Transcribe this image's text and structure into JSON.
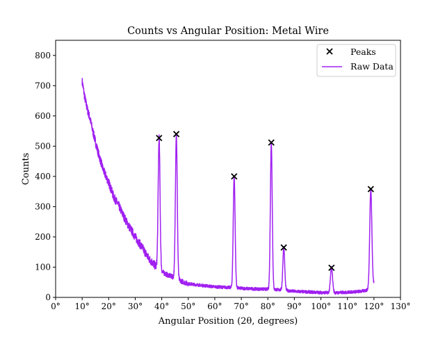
{
  "chart_data": {
    "type": "line",
    "title": "Counts vs Angular Position: Metal Wire",
    "xlabel": "Angular Position (2θ, degrees)",
    "ylabel": "Counts",
    "xlim": [
      0,
      130
    ],
    "ylim": [
      0,
      850
    ],
    "x_ticks": [
      0,
      10,
      20,
      30,
      40,
      50,
      60,
      70,
      80,
      90,
      100,
      110,
      120,
      130
    ],
    "x_tick_labels": [
      "0°",
      "10°",
      "20°",
      "30°",
      "40°",
      "50°",
      "60°",
      "70°",
      "80°",
      "90°",
      "100°",
      "110°",
      "120°",
      "130°"
    ],
    "y_ticks": [
      0,
      100,
      200,
      300,
      400,
      500,
      600,
      700,
      800
    ],
    "y_tick_labels": [
      "0",
      "100",
      "200",
      "300",
      "400",
      "500",
      "600",
      "700",
      "800"
    ],
    "grid": false,
    "legend_position": "top-right",
    "series": [
      {
        "name": "Raw Data",
        "kind": "line",
        "color": "#a020f0",
        "x_range": [
          10,
          120
        ],
        "baseline_anchors": [
          [
            10,
            715
          ],
          [
            11,
            660
          ],
          [
            12,
            620
          ],
          [
            13,
            590
          ],
          [
            14,
            550
          ],
          [
            15,
            515
          ],
          [
            16,
            480
          ],
          [
            17,
            450
          ],
          [
            18,
            420
          ],
          [
            20,
            380
          ],
          [
            22,
            330
          ],
          [
            24,
            300
          ],
          [
            25,
            280
          ],
          [
            27,
            245
          ],
          [
            30,
            200
          ],
          [
            33,
            160
          ],
          [
            35,
            130
          ],
          [
            37,
            110
          ],
          [
            38,
            100
          ],
          [
            40,
            85
          ],
          [
            42,
            75
          ],
          [
            45,
            65
          ],
          [
            47,
            55
          ],
          [
            50,
            45
          ],
          [
            55,
            40
          ],
          [
            60,
            35
          ],
          [
            65,
            33
          ],
          [
            70,
            30
          ],
          [
            75,
            28
          ],
          [
            80,
            27
          ],
          [
            85,
            25
          ],
          [
            90,
            20
          ],
          [
            95,
            18
          ],
          [
            100,
            16
          ],
          [
            105,
            15
          ],
          [
            110,
            17
          ],
          [
            115,
            20
          ],
          [
            118,
            25
          ],
          [
            120,
            45
          ]
        ],
        "peak_profiles": [
          {
            "center": 39.0,
            "height": 527,
            "width": 0.35
          },
          {
            "center": 45.5,
            "height": 540,
            "width": 0.35
          },
          {
            "center": 67.3,
            "height": 400,
            "width": 0.35
          },
          {
            "center": 81.3,
            "height": 512,
            "width": 0.35
          },
          {
            "center": 86.0,
            "height": 165,
            "width": 0.35
          },
          {
            "center": 104.0,
            "height": 98,
            "width": 0.4
          },
          {
            "center": 118.8,
            "height": 358,
            "width": 0.4
          }
        ]
      },
      {
        "name": "Peaks",
        "kind": "scatter",
        "marker": "x",
        "color": "#000000",
        "points": [
          [
            39.0,
            527
          ],
          [
            45.5,
            540
          ],
          [
            67.3,
            400
          ],
          [
            81.3,
            512
          ],
          [
            86.0,
            165
          ],
          [
            104.0,
            98
          ],
          [
            118.8,
            358
          ]
        ]
      }
    ]
  }
}
